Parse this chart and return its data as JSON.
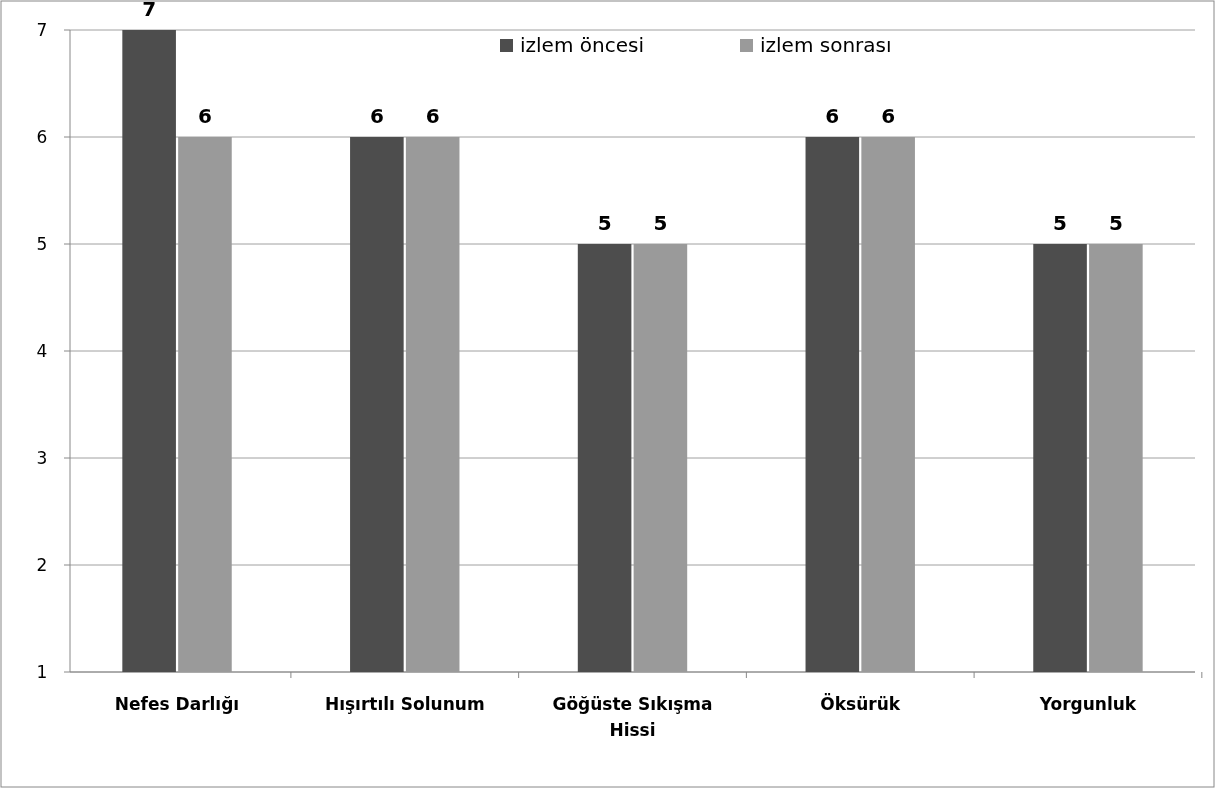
{
  "chart_data": {
    "type": "bar",
    "categories": [
      "Nefes Darlığı",
      "Hışırtılı Solunum",
      "Göğüste Sıkışma Hissi",
      "Öksürük",
      "Yorgunluk"
    ],
    "series": [
      {
        "name": "izlem öncesi",
        "color": "#4d4d4d",
        "values": [
          7,
          6,
          5,
          6,
          5
        ]
      },
      {
        "name": "izlem sonrası",
        "color": "#9a9a9a",
        "values": [
          6,
          6,
          5,
          6,
          5
        ]
      }
    ],
    "ylim": [
      1,
      7
    ],
    "yticks": [
      1,
      2,
      3,
      4,
      5,
      6,
      7
    ],
    "grid": "y",
    "legend": "top right",
    "data_labels": true
  }
}
